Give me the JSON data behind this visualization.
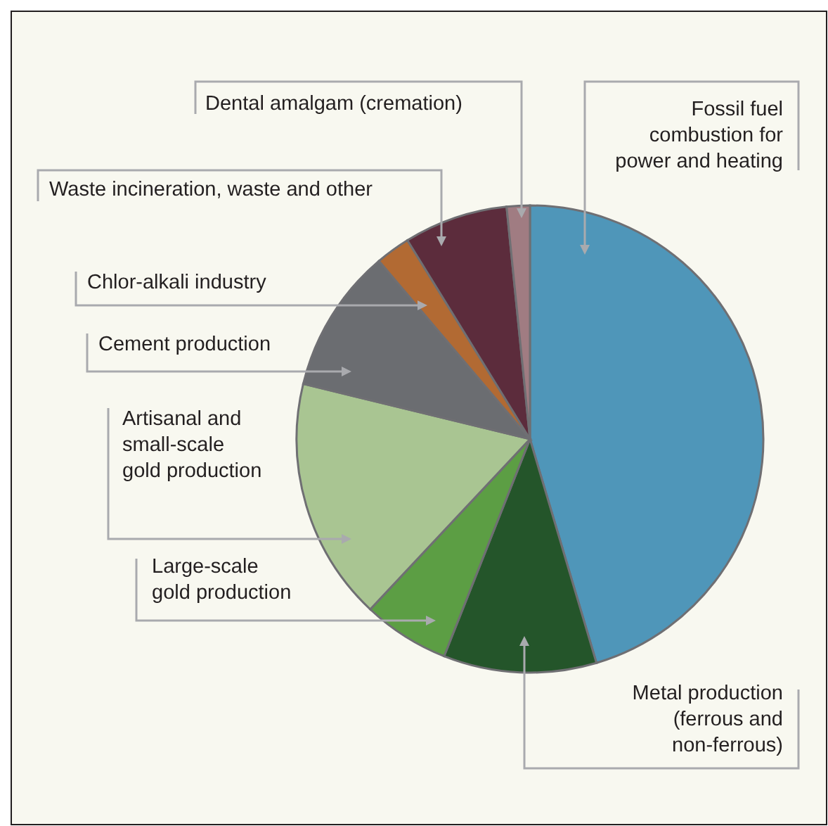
{
  "chart_data": {
    "type": "pie",
    "categories": [
      "Fossil fuel combustion for power and heating",
      "Metal production (ferrous and non-ferrous)",
      "Large-scale gold production",
      "Artisanal and small-scale gold production",
      "Cement production",
      "Chlor-alkali industry",
      "Waste incineration, waste and other",
      "Dental amalgam (cremation)"
    ],
    "values": [
      45.4,
      10.6,
      6,
      16.8,
      10,
      2.4,
      7.2,
      1.6
    ],
    "colors": [
      "#4f96b9",
      "#24552a",
      "#5c9e44",
      "#a9c592",
      "#6b6d71",
      "#b26a33",
      "#5c2c3c",
      "#a07c82"
    ]
  }
}
